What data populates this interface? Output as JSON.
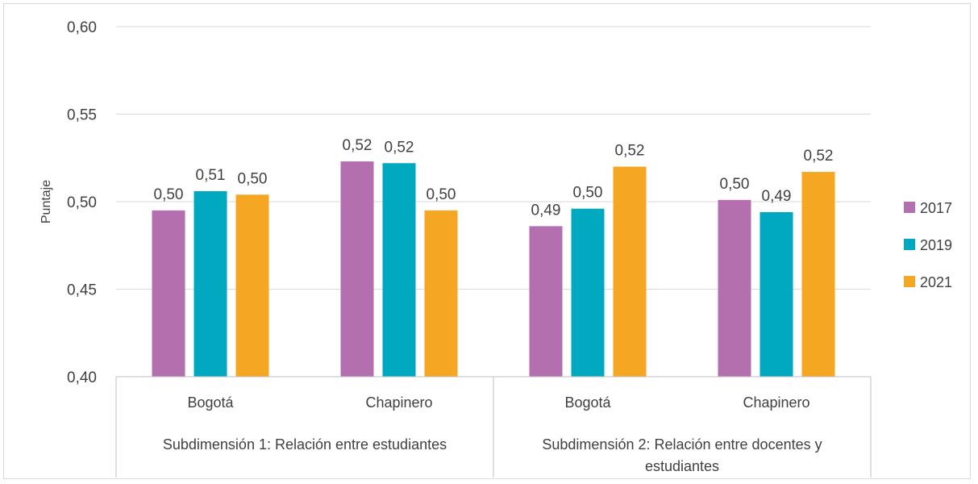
{
  "chart_data": {
    "type": "bar",
    "ylabel": "Puntaje",
    "ylim": [
      0.4,
      0.6
    ],
    "yticks": [
      "0,40",
      "0,45",
      "0,50",
      "0,55",
      "0,60"
    ],
    "grid": true,
    "legend_position": "right",
    "groups": [
      {
        "label": "Subdimensión 1: Relación entre estudiantes",
        "categories": [
          "Bogotá",
          "Chapinero"
        ]
      },
      {
        "label_lines": [
          "Subdimensión 2: Relación entre docentes y",
          "estudiantes"
        ],
        "categories": [
          "Bogotá",
          "Chapinero"
        ]
      }
    ],
    "series": [
      {
        "name": "2017",
        "color": "#b36fae",
        "values": [
          0.495,
          0.523,
          0.486,
          0.501
        ],
        "labels": [
          "0,50",
          "0,52",
          "0,49",
          "0,50"
        ]
      },
      {
        "name": "2019",
        "color": "#00a9c0",
        "values": [
          0.506,
          0.522,
          0.496,
          0.494
        ],
        "labels": [
          "0,51",
          "0,52",
          "0,50",
          "0,49"
        ]
      },
      {
        "name": "2021",
        "color": "#f5a623",
        "values": [
          0.504,
          0.495,
          0.52,
          0.517
        ],
        "labels": [
          "0,50",
          "0,50",
          "0,52",
          "0,52"
        ]
      }
    ]
  }
}
